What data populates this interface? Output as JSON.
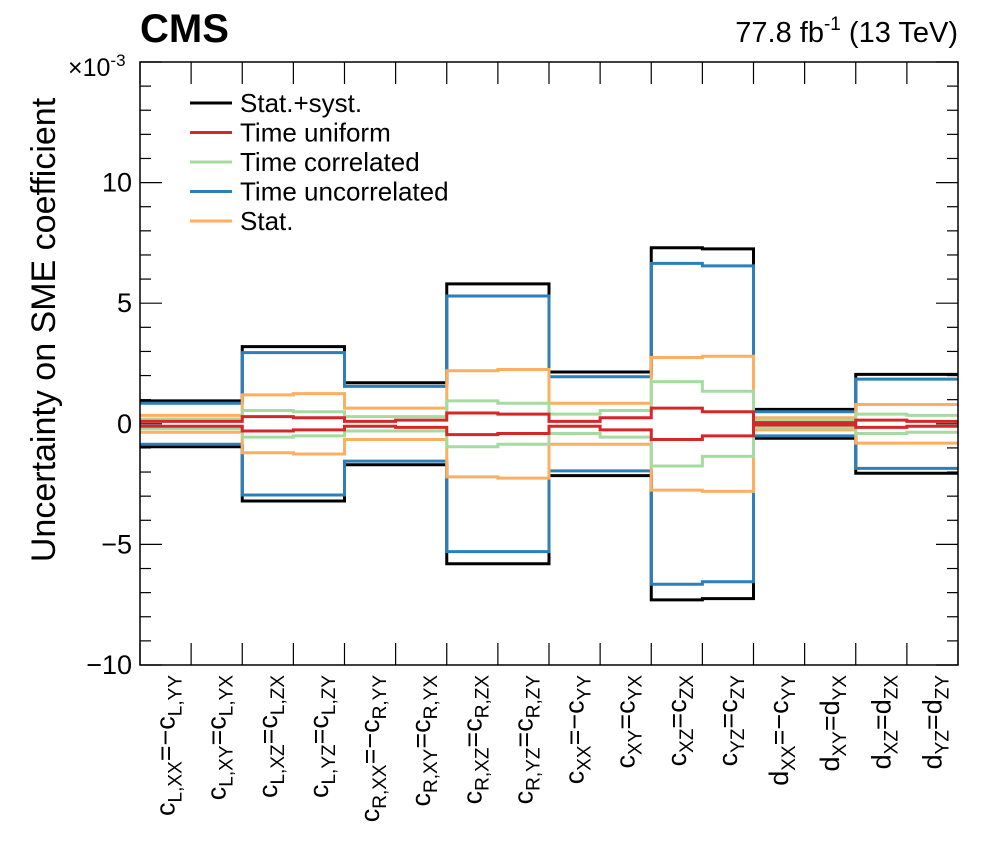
{
  "header": {
    "experiment": "CMS",
    "lumi_value": "77.8 fb",
    "lumi_exp": "-1",
    "energy": "(13 TeV)"
  },
  "chart_data": {
    "type": "step",
    "ylabel": "Uncertainty on SME coefficient",
    "y_multiplier": "×10",
    "y_multiplier_exp": "-3",
    "ylim": [
      -10,
      15
    ],
    "yticks": [
      -10,
      -5,
      0,
      5,
      10
    ],
    "ytick_labels": [
      "−10",
      "−5",
      "0",
      "5",
      "10"
    ],
    "legend": [
      {
        "label": "Stat.+syst.",
        "color": "#000000"
      },
      {
        "label": "Time uniform",
        "color": "#d62728"
      },
      {
        "label": "Time correlated",
        "color": "#a6dba0"
      },
      {
        "label": "Time uncorrelated",
        "color": "#2c7fb8"
      },
      {
        "label": "Stat.",
        "color": "#fdae61"
      }
    ],
    "categories": [
      {
        "parts": [
          [
            "c",
            ""
          ],
          [
            "L,XX",
            "sub"
          ],
          [
            "=−c",
            ""
          ],
          [
            "L,YY",
            "sub"
          ]
        ]
      },
      {
        "parts": [
          [
            "c",
            ""
          ],
          [
            "L,XY",
            "sub"
          ],
          [
            "=c",
            ""
          ],
          [
            "L,YX",
            "sub"
          ]
        ]
      },
      {
        "parts": [
          [
            "c",
            ""
          ],
          [
            "L,XZ",
            "sub"
          ],
          [
            "=c",
            ""
          ],
          [
            "L,ZX",
            "sub"
          ]
        ]
      },
      {
        "parts": [
          [
            "c",
            ""
          ],
          [
            "L,YZ",
            "sub"
          ],
          [
            "=c",
            ""
          ],
          [
            "L,ZY",
            "sub"
          ]
        ]
      },
      {
        "parts": [
          [
            "c",
            ""
          ],
          [
            "R,XX",
            "sub"
          ],
          [
            "=−c",
            ""
          ],
          [
            "R,YY",
            "sub"
          ]
        ]
      },
      {
        "parts": [
          [
            "c",
            ""
          ],
          [
            "R,XY",
            "sub"
          ],
          [
            "=c",
            ""
          ],
          [
            "R,YX",
            "sub"
          ]
        ]
      },
      {
        "parts": [
          [
            "c",
            ""
          ],
          [
            "R,XZ",
            "sub"
          ],
          [
            "=c",
            ""
          ],
          [
            "R,ZX",
            "sub"
          ]
        ]
      },
      {
        "parts": [
          [
            "c",
            ""
          ],
          [
            "R,YZ",
            "sub"
          ],
          [
            "=c",
            ""
          ],
          [
            "R,ZY",
            "sub"
          ]
        ]
      },
      {
        "parts": [
          [
            "c",
            ""
          ],
          [
            "XX",
            "sub"
          ],
          [
            "=−c",
            ""
          ],
          [
            "YY",
            "sub"
          ]
        ]
      },
      {
        "parts": [
          [
            "c",
            ""
          ],
          [
            "XY",
            "sub"
          ],
          [
            "=c",
            ""
          ],
          [
            "YX",
            "sub"
          ]
        ]
      },
      {
        "parts": [
          [
            "c",
            ""
          ],
          [
            "XZ",
            "sub"
          ],
          [
            "=c",
            ""
          ],
          [
            "ZX",
            "sub"
          ]
        ]
      },
      {
        "parts": [
          [
            "c",
            ""
          ],
          [
            "YZ",
            "sub"
          ],
          [
            "=c",
            ""
          ],
          [
            "ZY",
            "sub"
          ]
        ]
      },
      {
        "parts": [
          [
            "d",
            ""
          ],
          [
            "XX",
            "sub"
          ],
          [
            "=−c",
            ""
          ],
          [
            "YY",
            "sub"
          ]
        ]
      },
      {
        "parts": [
          [
            "d",
            ""
          ],
          [
            "XY",
            "sub"
          ],
          [
            "=d",
            ""
          ],
          [
            "YX",
            "sub"
          ]
        ]
      },
      {
        "parts": [
          [
            "d",
            ""
          ],
          [
            "XZ",
            "sub"
          ],
          [
            "=d",
            ""
          ],
          [
            "ZX",
            "sub"
          ]
        ]
      },
      {
        "parts": [
          [
            "d",
            ""
          ],
          [
            "YZ",
            "sub"
          ],
          [
            "=d",
            ""
          ],
          [
            "ZY",
            "sub"
          ]
        ]
      }
    ],
    "series": [
      {
        "name": "Stat.+syst.",
        "color": "#000000",
        "width": 3,
        "values": [
          0.95,
          0.95,
          3.2,
          3.2,
          1.7,
          1.7,
          5.8,
          5.8,
          2.15,
          2.15,
          7.3,
          7.25,
          0.6,
          0.6,
          2.05,
          2.05
        ]
      },
      {
        "name": "Time uncorrelated",
        "color": "#2c7fb8",
        "width": 3,
        "values": [
          0.85,
          0.85,
          2.95,
          2.95,
          1.55,
          1.55,
          5.3,
          5.3,
          1.95,
          1.95,
          6.65,
          6.55,
          0.5,
          0.5,
          1.85,
          1.85
        ]
      },
      {
        "name": "Stat.",
        "color": "#fdae61",
        "width": 3,
        "values": [
          0.35,
          0.35,
          1.2,
          1.25,
          0.65,
          0.65,
          2.2,
          2.25,
          0.85,
          0.85,
          2.75,
          2.8,
          0.25,
          0.25,
          0.8,
          0.8
        ]
      },
      {
        "name": "Time correlated",
        "color": "#a6dba0",
        "width": 3,
        "values": [
          0.2,
          0.2,
          0.55,
          0.5,
          0.3,
          0.3,
          0.95,
          0.85,
          0.4,
          0.55,
          1.75,
          1.35,
          0.15,
          0.15,
          0.4,
          0.35
        ]
      },
      {
        "name": "Time uniform",
        "color": "#d62728",
        "width": 3,
        "values": [
          0.1,
          0.1,
          0.3,
          0.25,
          0.1,
          0.15,
          0.45,
          0.4,
          0.1,
          0.25,
          0.65,
          0.5,
          0.05,
          0.05,
          0.15,
          0.1
        ]
      }
    ]
  }
}
